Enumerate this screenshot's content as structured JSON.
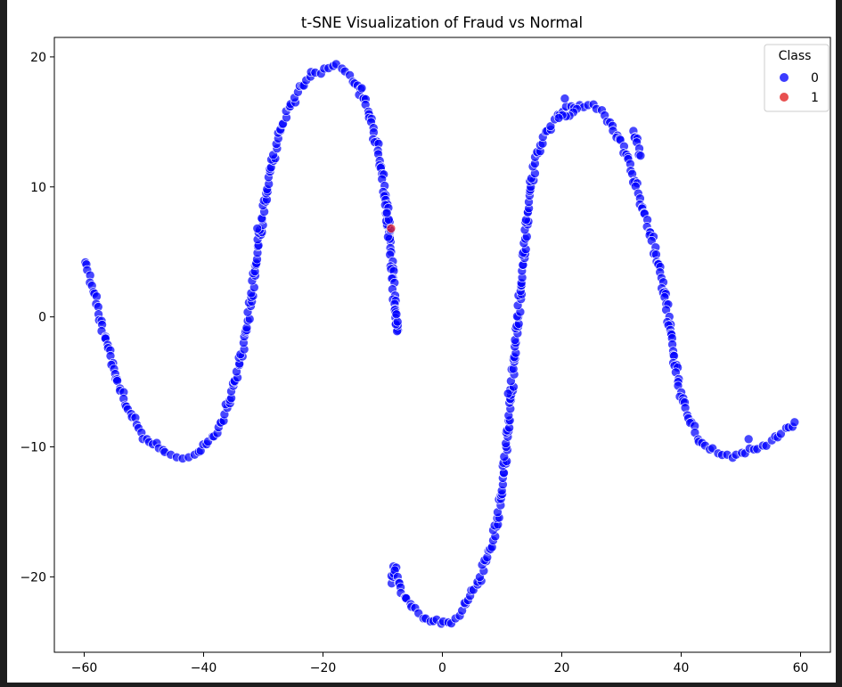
{
  "chart_data": {
    "type": "scatter",
    "title": "t-SNE Visualization of Fraud vs Normal",
    "xlabel": "",
    "ylabel": "",
    "xlim": [
      -65,
      65
    ],
    "ylim": [
      -25.8,
      21.5
    ],
    "x_ticks": [
      -60,
      -40,
      -20,
      0,
      20,
      40,
      60
    ],
    "y_ticks": [
      -20,
      -10,
      0,
      10,
      20
    ],
    "x_tick_labels": [
      "−60",
      "−40",
      "−20",
      "0",
      "20",
      "40",
      "60"
    ],
    "y_tick_labels": [
      "−20",
      "−10",
      "0",
      "10",
      "20"
    ],
    "grid": false,
    "legend": {
      "title": "Class",
      "placement": "top-right"
    },
    "series": [
      {
        "name": "0",
        "color": "#0000ff",
        "points": [
          [
            -59.8,
            4.2
          ],
          [
            -59.5,
            3.6
          ],
          [
            -59.0,
            3.2
          ],
          [
            -58.7,
            2.4
          ],
          [
            -58.3,
            1.8
          ],
          [
            -58.0,
            1.0
          ],
          [
            -57.6,
            0.2
          ],
          [
            -57.0,
            -0.6
          ],
          [
            -56.5,
            -1.6
          ],
          [
            -56.0,
            -2.4
          ],
          [
            -55.6,
            -3.0
          ],
          [
            -55.0,
            -4.0
          ],
          [
            -54.5,
            -4.8
          ],
          [
            -54.0,
            -5.5
          ],
          [
            -53.4,
            -6.3
          ],
          [
            -52.7,
            -7.1
          ],
          [
            -52.0,
            -7.7
          ],
          [
            -51.2,
            -8.3
          ],
          [
            -50.4,
            -8.9
          ],
          [
            -49.5,
            -9.4
          ],
          [
            -48.5,
            -9.8
          ],
          [
            -47.5,
            -10.1
          ],
          [
            -46.5,
            -10.4
          ],
          [
            -45.5,
            -10.6
          ],
          [
            -44.5,
            -10.8
          ],
          [
            -43.5,
            -10.9
          ],
          [
            -42.5,
            -10.8
          ],
          [
            -41.5,
            -10.6
          ],
          [
            -40.5,
            -10.3
          ],
          [
            -39.5,
            -9.8
          ],
          [
            -38.5,
            -9.2
          ],
          [
            -37.5,
            -8.5
          ],
          [
            -36.5,
            -7.5
          ],
          [
            -35.6,
            -6.4
          ],
          [
            -34.8,
            -5.0
          ],
          [
            -34.0,
            -3.6
          ],
          [
            -33.3,
            -2.0
          ],
          [
            -32.6,
            -0.3
          ],
          [
            -32.0,
            1.5
          ],
          [
            -31.4,
            3.5
          ],
          [
            -30.8,
            5.5
          ],
          [
            -30.2,
            7.5
          ],
          [
            -29.5,
            9.5
          ],
          [
            -28.7,
            11.5
          ],
          [
            -27.8,
            13.3
          ],
          [
            -26.8,
            14.8
          ],
          [
            -25.5,
            16.2
          ],
          [
            -24.2,
            17.3
          ],
          [
            -22.8,
            18.2
          ],
          [
            -21.3,
            18.8
          ],
          [
            -19.8,
            19.1
          ],
          [
            -18.3,
            19.3
          ],
          [
            -16.8,
            19.1
          ],
          [
            -15.5,
            18.6
          ],
          [
            -14.2,
            17.8
          ],
          [
            -13.2,
            16.8
          ],
          [
            -12.3,
            15.6
          ],
          [
            -11.5,
            14.2
          ],
          [
            -10.8,
            12.8
          ],
          [
            -10.1,
            11.0
          ],
          [
            -9.5,
            9.0
          ],
          [
            -9.0,
            7.0
          ],
          [
            -8.6,
            5.0
          ],
          [
            -8.3,
            3.0
          ],
          [
            -8.0,
            1.0
          ],
          [
            -7.8,
            -0.5
          ],
          [
            -7.6,
            -1.1
          ],
          [
            -7.7,
            0.2
          ],
          [
            -8.8,
            6.0
          ],
          [
            -9.3,
            8.0
          ],
          [
            -8.5,
            -20.5
          ],
          [
            -8.2,
            -19.2
          ],
          [
            -7.5,
            -20.0
          ],
          [
            -7.0,
            -20.8
          ],
          [
            -6.2,
            -21.6
          ],
          [
            -5.2,
            -22.3
          ],
          [
            -4.0,
            -22.8
          ],
          [
            -2.8,
            -23.2
          ],
          [
            -1.5,
            -23.4
          ],
          [
            -0.2,
            -23.6
          ],
          [
            1.0,
            -23.5
          ],
          [
            2.2,
            -23.2
          ],
          [
            3.3,
            -22.6
          ],
          [
            4.3,
            -21.8
          ],
          [
            5.2,
            -21.0
          ],
          [
            5.9,
            -20.6
          ],
          [
            7.5,
            -18.5
          ],
          [
            8.5,
            -17.2
          ],
          [
            9.2,
            -15.5
          ],
          [
            9.8,
            -14.0
          ],
          [
            10.3,
            -12.0
          ],
          [
            10.7,
            -10.0
          ],
          [
            11.1,
            -8.0
          ],
          [
            11.5,
            -6.0
          ],
          [
            11.9,
            -4.0
          ],
          [
            12.3,
            -2.0
          ],
          [
            12.7,
            0.0
          ],
          [
            13.1,
            2.0
          ],
          [
            13.5,
            4.0
          ],
          [
            13.9,
            6.0
          ],
          [
            14.3,
            8.0
          ],
          [
            14.8,
            10.0
          ],
          [
            15.5,
            11.8
          ],
          [
            16.4,
            13.2
          ],
          [
            17.5,
            14.3
          ],
          [
            18.8,
            15.2
          ],
          [
            20.2,
            15.8
          ],
          [
            21.6,
            16.2
          ],
          [
            23.0,
            16.3
          ],
          [
            24.4,
            16.3
          ],
          [
            25.8,
            16.0
          ],
          [
            27.2,
            15.5
          ],
          [
            28.5,
            14.7
          ],
          [
            29.7,
            13.7
          ],
          [
            30.8,
            12.5
          ],
          [
            31.8,
            11.0
          ],
          [
            32.8,
            9.5
          ],
          [
            33.8,
            8.0
          ],
          [
            34.8,
            6.5
          ],
          [
            35.8,
            4.8
          ],
          [
            36.7,
            3.0
          ],
          [
            37.5,
            1.0
          ],
          [
            38.2,
            -1.0
          ],
          [
            38.8,
            -3.0
          ],
          [
            39.5,
            -5.0
          ],
          [
            40.3,
            -6.5
          ],
          [
            41.2,
            -7.8
          ],
          [
            42.3,
            -8.9
          ],
          [
            43.5,
            -9.7
          ],
          [
            44.8,
            -10.2
          ],
          [
            46.2,
            -10.5
          ],
          [
            47.7,
            -10.6
          ],
          [
            49.2,
            -10.6
          ],
          [
            50.7,
            -10.5
          ],
          [
            52.2,
            -10.2
          ],
          [
            53.7,
            -9.9
          ],
          [
            55.2,
            -9.5
          ],
          [
            56.7,
            -9.0
          ],
          [
            58.0,
            -8.5
          ],
          [
            59.0,
            -8.1
          ],
          [
            51.3,
            -9.4
          ],
          [
            20.5,
            16.8
          ],
          [
            32.0,
            14.3
          ],
          [
            33.2,
            12.4
          ],
          [
            -13.5,
            17.6
          ],
          [
            -31.0,
            6.8
          ],
          [
            11.0,
            -5.9
          ],
          [
            22.5,
            16.0
          ],
          [
            19.5,
            15.3
          ]
        ]
      },
      {
        "name": "1",
        "color": "#e82020",
        "points": [
          [
            -8.6,
            6.8
          ]
        ]
      }
    ]
  }
}
